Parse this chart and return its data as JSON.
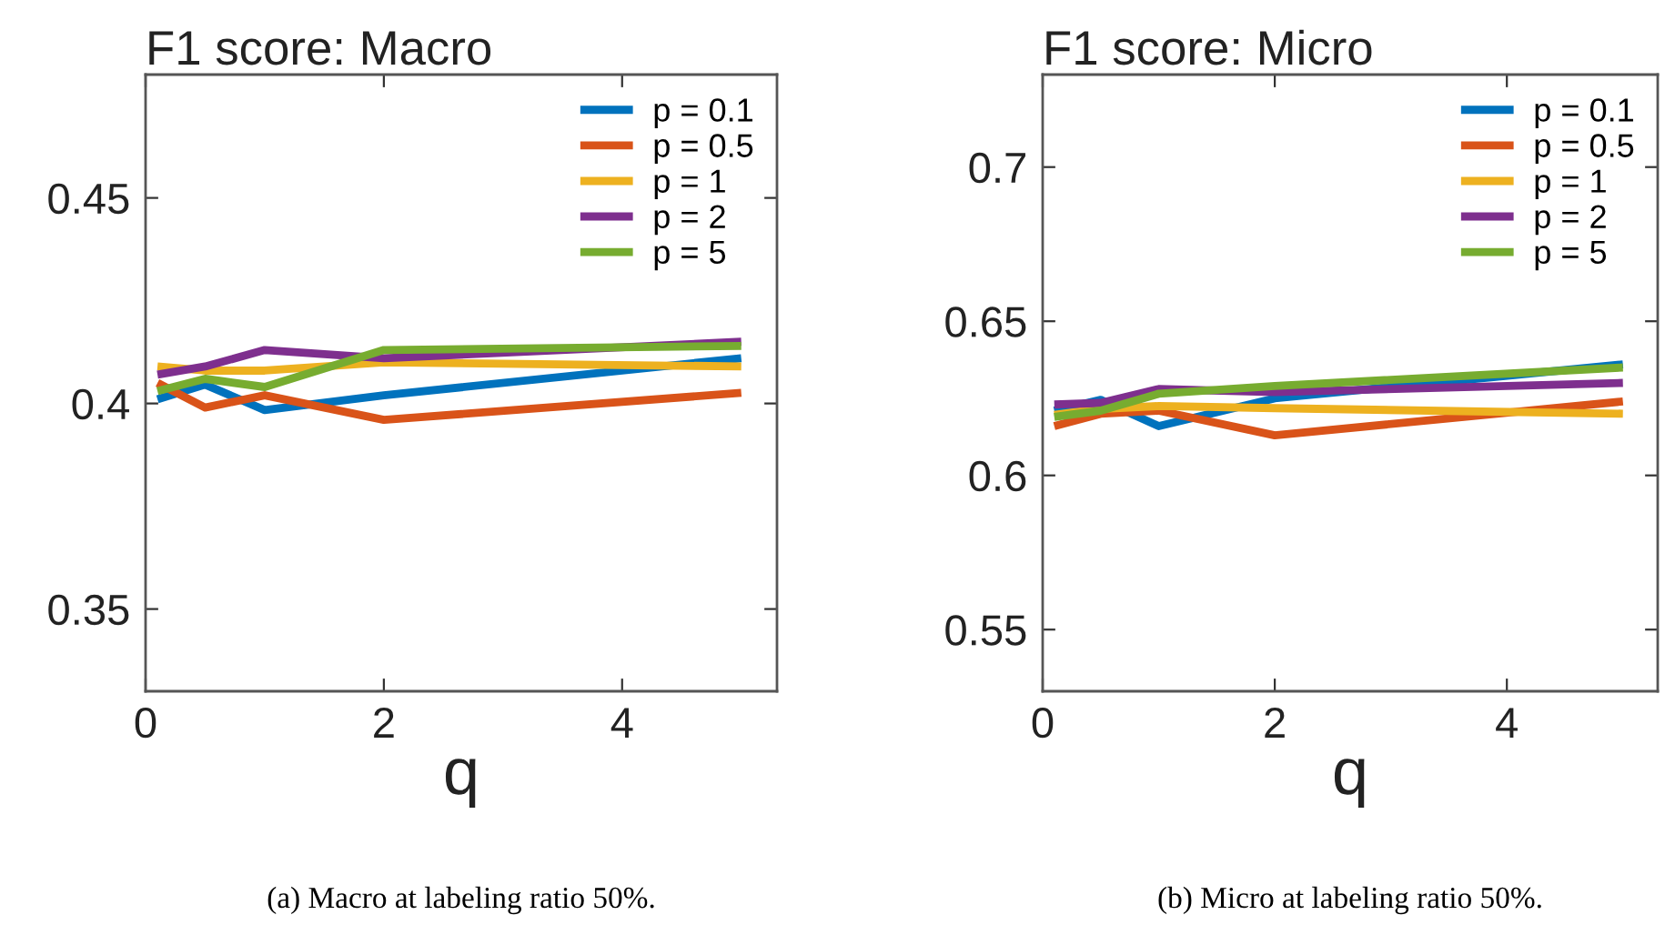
{
  "chart_data": [
    {
      "type": "line",
      "title": "F1 score: Macro",
      "xlabel": "q",
      "annotations": [
        "(a) Macro at labeling ratio 50%."
      ],
      "x": [
        0.1,
        0.5,
        1,
        2,
        5
      ],
      "xlim": [
        0,
        5.3
      ],
      "ylim": [
        0.33,
        0.48
      ],
      "xticks": [
        0,
        2,
        4
      ],
      "yticks": [
        0.35,
        0.4,
        0.45
      ],
      "grid": false,
      "legend": "top right",
      "series": [
        {
          "name": "p = 0.1",
          "color": "#0072bd",
          "values": [
            0.401,
            0.4046,
            0.3984,
            0.402,
            0.411
          ]
        },
        {
          "name": "p = 0.5",
          "color": "#d95319",
          "values": [
            0.405,
            0.399,
            0.402,
            0.396,
            0.4026
          ]
        },
        {
          "name": "p = 1",
          "color": "#edb120",
          "values": [
            0.409,
            0.408,
            0.408,
            0.41,
            0.409
          ]
        },
        {
          "name": "p = 2",
          "color": "#7e2f8e",
          "values": [
            0.407,
            0.409,
            0.413,
            0.411,
            0.415
          ]
        },
        {
          "name": "p = 5",
          "color": "#77ac30",
          "values": [
            0.403,
            0.406,
            0.404,
            0.413,
            0.414
          ]
        }
      ]
    },
    {
      "type": "line",
      "title": "F1 score: Micro",
      "xlabel": "q",
      "annotations": [
        "(b) Micro at labeling ratio 50%."
      ],
      "x": [
        0.1,
        0.5,
        1,
        2,
        5
      ],
      "xlim": [
        0,
        5.3
      ],
      "ylim": [
        0.53,
        0.73
      ],
      "xticks": [
        0,
        2,
        4
      ],
      "yticks": [
        0.55,
        0.6,
        0.65,
        0.7
      ],
      "grid": false,
      "legend": "top right",
      "series": [
        {
          "name": "p = 0.1",
          "color": "#0072bd",
          "values": [
            0.621,
            0.6245,
            0.616,
            0.625,
            0.636
          ]
        },
        {
          "name": "p = 0.5",
          "color": "#d95319",
          "values": [
            0.616,
            0.62,
            0.621,
            0.613,
            0.624
          ]
        },
        {
          "name": "p = 1",
          "color": "#edb120",
          "values": [
            0.6196,
            0.6216,
            0.6225,
            0.6218,
            0.62
          ]
        },
        {
          "name": "p = 2",
          "color": "#7e2f8e",
          "values": [
            0.623,
            0.6235,
            0.628,
            0.627,
            0.63
          ]
        },
        {
          "name": "p = 5",
          "color": "#77ac30",
          "values": [
            0.619,
            0.621,
            0.6265,
            0.629,
            0.635
          ]
        }
      ]
    }
  ]
}
